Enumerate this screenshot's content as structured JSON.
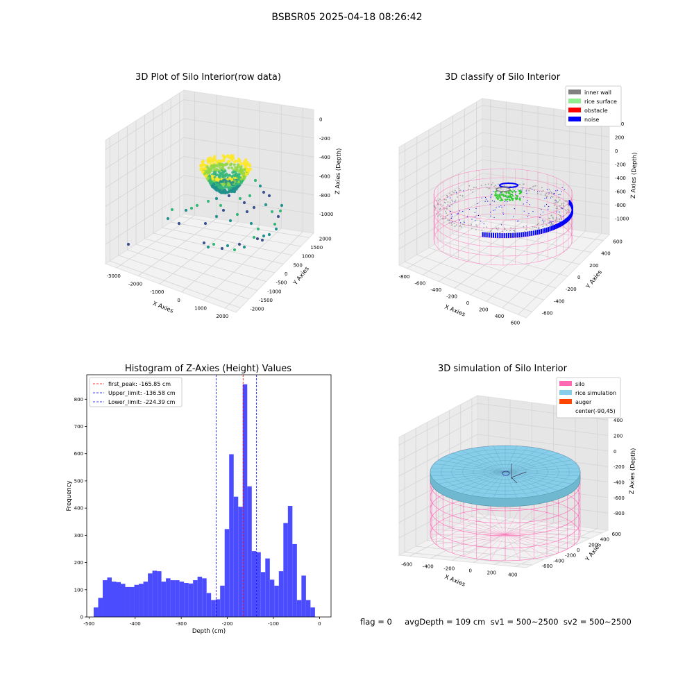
{
  "figure": {
    "title": "BSBSR05 2025-04-18 08:26:42",
    "status_line": "flag = 0     avgDepth = 109 cm  sv1 = 500~2500  sv2 = 500~2500"
  },
  "chart_data": [
    {
      "type": "scatter",
      "title": "3D Plot of Silo Interior(row data)",
      "xlabel": "X Axies",
      "ylabel": "Y Axies",
      "zlabel": "Z Axies (Depth)",
      "x_ticks": [
        "-3000",
        "-2000",
        "-1000",
        "0",
        "1000",
        "2000"
      ],
      "y_ticks": [
        "-2000",
        "-1500",
        "-1000",
        "-500",
        "0",
        "500",
        "1000",
        "1500",
        "2000"
      ],
      "z_ticks": [
        "0",
        "-200",
        "-400",
        "-600",
        "-800",
        "-1000"
      ],
      "xlim": [
        -3200,
        2000
      ],
      "ylim": [
        -2000,
        2000
      ],
      "zlim": [
        -1100,
        0
      ],
      "colormap": "viridis",
      "grid": true
    },
    {
      "type": "scatter",
      "title": "3D classify of Silo Interior",
      "xlabel": "X Axies",
      "ylabel": "Y Axies",
      "zlabel": "Z Axies (Depth)",
      "x_ticks": [
        "-800",
        "-600",
        "-400",
        "-200",
        "0",
        "200",
        "400",
        "600"
      ],
      "y_ticks": [
        "-600",
        "-400",
        "-200",
        "0",
        "200",
        "400",
        "600"
      ],
      "z_ticks": [
        "400",
        "200",
        "0",
        "-200",
        "-400",
        "-600",
        "-800",
        "-1000"
      ],
      "legend": [
        {
          "label": "inner wall",
          "color": "#808080"
        },
        {
          "label": "rice surface",
          "color": "#90ee90"
        },
        {
          "label": "obstacle",
          "color": "#ff0000"
        },
        {
          "label": "noise",
          "color": "#0000ff"
        }
      ],
      "legend_position": "top-right",
      "colors": {
        "silo_wire": "#ff69b4"
      },
      "grid": true
    },
    {
      "type": "bar",
      "title": "Histogram of Z-Axies (Height) Values",
      "xlabel": "Depth (cm)",
      "ylabel": "Frequency",
      "xlim": [
        -505,
        25
      ],
      "ylim": [
        0,
        890
      ],
      "x_ticks": [
        -500,
        -400,
        -300,
        -200,
        -100,
        0
      ],
      "y_ticks": [
        0,
        100,
        200,
        300,
        400,
        500,
        600,
        700,
        800
      ],
      "bin_start": -490,
      "bin_width": 9.8,
      "values": [
        35,
        70,
        135,
        145,
        130,
        128,
        122,
        110,
        110,
        118,
        122,
        130,
        160,
        170,
        168,
        130,
        142,
        135,
        135,
        130,
        125,
        123,
        135,
        148,
        142,
        88,
        62,
        65,
        115,
        323,
        598,
        442,
        405,
        855,
        480,
        242,
        238,
        165,
        215,
        137,
        115,
        168,
        345,
        408,
        268,
        62,
        152,
        62,
        35
      ],
      "bar_color": "#4c4cff",
      "lines": [
        {
          "label": "first_peak: -165.85 cm",
          "x": -165.85,
          "color": "#ff0000"
        },
        {
          "label": "Upper_limit: -136.58 cm",
          "x": -136.58,
          "color": "#0000ff"
        },
        {
          "label": "Lower_limit: -224.39 cm",
          "x": -224.39,
          "color": "#0000ff"
        }
      ],
      "legend_position": "top-left"
    },
    {
      "type": "scatter",
      "title": "3D simulation of Silo Interior",
      "xlabel": "X Axies",
      "ylabel": "Y Axies",
      "zlabel": "Z Axies (Depth)",
      "x_ticks": [
        "-600",
        "-400",
        "-200",
        "0",
        "200",
        "400"
      ],
      "y_ticks": [
        "-600",
        "-400",
        "-200",
        "0",
        "200",
        "400",
        "600"
      ],
      "z_ticks": [
        "400",
        "200",
        "0",
        "-200",
        "-400",
        "-600",
        "-800"
      ],
      "legend": [
        {
          "label": "silo",
          "color": "#ff69b4"
        },
        {
          "label": "rice simulation",
          "color": "#87ceeb"
        },
        {
          "label": "auger",
          "color": "#ff4500"
        },
        {
          "label": "center(-90,45)",
          "color": ""
        }
      ],
      "legend_position": "top-right",
      "grid": true
    }
  ]
}
